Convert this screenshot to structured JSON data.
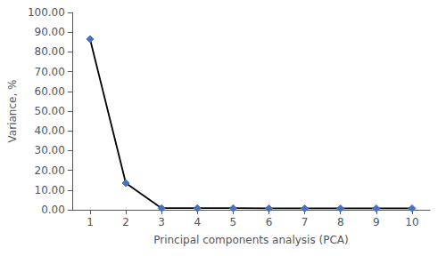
{
  "chart_data": {
    "type": "line",
    "x": [
      1,
      2,
      3,
      4,
      5,
      6,
      7,
      8,
      9,
      10
    ],
    "values": [
      86.5,
      13.5,
      0.8,
      0.8,
      0.8,
      0.7,
      0.7,
      0.7,
      0.7,
      0.7
    ],
    "color": "#000000",
    "colors": [
      "#4472C4",
      "#4472C4",
      "#4472C4",
      "#4472C4",
      "#4472C4",
      "#4472C4",
      "#4472C4",
      "#4472C4",
      "#4472C4",
      "#4472C4"
    ],
    "marker": "diamond",
    "xlabel": "Principal components analysis (PCA)",
    "ylabel": "Variance, %",
    "xlim": [
      0.5,
      10.5
    ],
    "xticks": [
      1,
      2,
      3,
      4,
      5,
      6,
      7,
      8,
      9,
      10
    ],
    "ylim": [
      0,
      100
    ],
    "yticks": [
      {
        "value": 0,
        "label": "0.00"
      },
      {
        "value": 10,
        "label": "10.00"
      },
      {
        "value": 20,
        "label": "20.00"
      },
      {
        "value": 30,
        "label": "30.00"
      },
      {
        "value": 40,
        "label": "40.00"
      },
      {
        "value": 50,
        "label": "50.00"
      },
      {
        "value": 60,
        "label": "60.00"
      },
      {
        "value": 70,
        "label": "70.00"
      },
      {
        "value": 80,
        "label": "80.00"
      },
      {
        "value": 90,
        "label": "90.00"
      },
      {
        "value": 100,
        "label": "100.00"
      }
    ],
    "grid": false
  }
}
